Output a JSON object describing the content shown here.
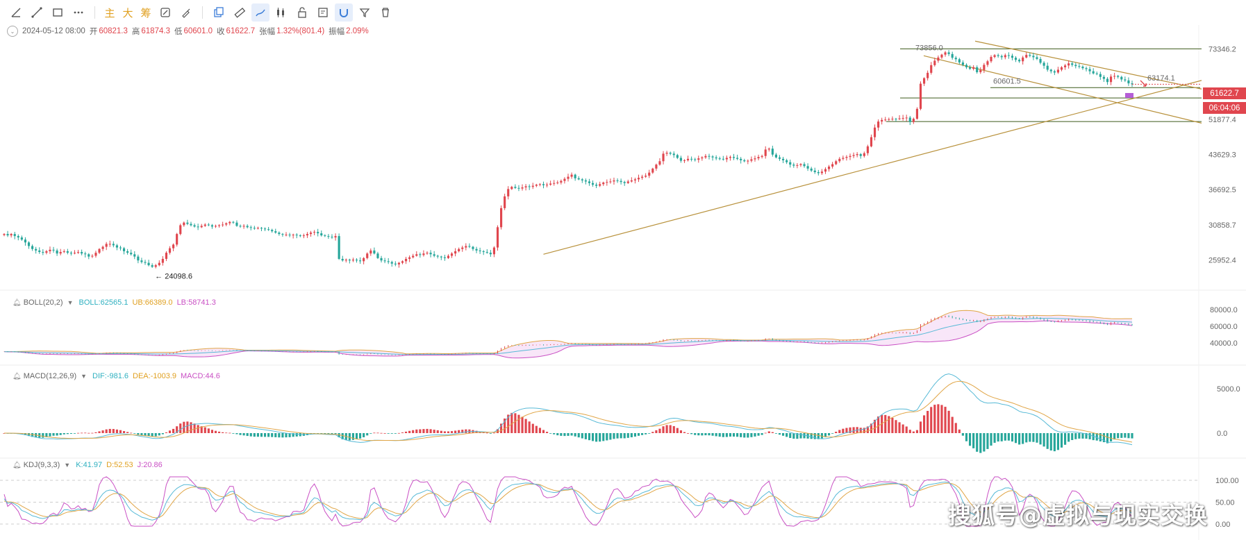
{
  "toolbar": {
    "tools_left": [
      "ray-line-icon",
      "trend-line-icon",
      "rectangle-icon",
      "more-dots-icon"
    ],
    "text_tools": [
      "主",
      "大",
      "筹"
    ],
    "tools_right": [
      "calc-tool-icon",
      "brush-tool-icon",
      "copy-icon",
      "ruler-icon",
      "draw-pen-icon",
      "candle-bars-icon",
      "lock-icon",
      "note-edit-icon",
      "magnet-icon",
      "filter-icon",
      "trash-icon"
    ]
  },
  "ohlc": {
    "date": "2024-05-12 08:00",
    "open_label": "开",
    "open": "60821.3",
    "high_label": "高",
    "high": "61874.3",
    "low_label": "低",
    "low": "60601.0",
    "close_label": "收",
    "close": "61622.7",
    "change_label": "张幅",
    "change": "1.32%(801.4)",
    "amp_label": "振幅",
    "amp": "2.09%"
  },
  "boll": {
    "name": "BOLL(20,2)",
    "boll": "BOLL:62565.1",
    "ub": "UB:66389.0",
    "lb": "LB:58741.3"
  },
  "macd": {
    "name": "MACD(12,26,9)",
    "dif": "DIF:-981.6",
    "dea": "DEA:-1003.9",
    "macd": "MACD:44.6"
  },
  "kdj": {
    "name": "KDJ(9,3,3)",
    "k": "K:41.97",
    "d": "D:52.53",
    "j": "J:20.86"
  },
  "price_axis": [
    "73346.2",
    "51877.4",
    "43629.3",
    "36692.5",
    "30858.7",
    "25952.4"
  ],
  "boll_axis": [
    "80000.0",
    "60000.0",
    "40000.0"
  ],
  "macd_axis": [
    "5000.0",
    "0.0"
  ],
  "kdj_axis": [
    "100.00",
    "50.00",
    "0.00"
  ],
  "annotations": {
    "low": "24098.6",
    "high": "73856.0",
    "level": "60601.5",
    "target": "63174.1"
  },
  "current_price": "61622.7",
  "countdown": "06:04:06",
  "watermark": "搜狐号@虚拟与现实交换",
  "colors": {
    "up": "#e0464e",
    "down": "#26a69a",
    "boll_mid": "#56b9d6",
    "boll_ub": "#e0a546",
    "boll_lb": "#c94fc4",
    "trend": "#b8913b",
    "level": "#6d8f2a",
    "dif": "#56b9d6",
    "dea": "#e0a546",
    "k": "#56b9d6",
    "d": "#e0a546",
    "j": "#c94fc4"
  },
  "chart_data": {
    "type": "candlestick",
    "title": "",
    "ylim": [
      23000,
      76000
    ],
    "log_scale": true,
    "closes": [
      29500,
      29300,
      29500,
      29200,
      29000,
      28700,
      28300,
      27800,
      27400,
      27200,
      27000,
      26900,
      27100,
      27300,
      27200,
      26800,
      27000,
      27100,
      26900,
      26800,
      26900,
      27000,
      26800,
      26700,
      26400,
      26500,
      26900,
      27400,
      27700,
      28100,
      28100,
      27900,
      27600,
      27500,
      27100,
      26900,
      26700,
      26400,
      25900,
      25700,
      25600,
      25300,
      25100,
      25300,
      25600,
      26100,
      26900,
      27500,
      28000,
      29500,
      30800,
      31200,
      31000,
      30800,
      30600,
      30500,
      30700,
      30900,
      30800,
      30600,
      30700,
      30800,
      30900,
      31100,
      31300,
      31200,
      30700,
      30600,
      30700,
      30500,
      30400,
      30300,
      30400,
      30300,
      30200,
      30100,
      29900,
      29700,
      29500,
      29400,
      29400,
      29300,
      29400,
      29300,
      29200,
      29300,
      29500,
      29700,
      29800,
      29600,
      29300,
      29200,
      29100,
      29000,
      29200,
      26100,
      25900,
      26000,
      25900,
      26000,
      25900,
      25800,
      26200,
      26800,
      27200,
      26800,
      26200,
      25900,
      25800,
      25700,
      25500,
      25400,
      25600,
      25800,
      26100,
      26300,
      26500,
      26700,
      26600,
      26800,
      26900,
      26700,
      26500,
      26400,
      26300,
      26200,
      26500,
      26800,
      27100,
      27400,
      27600,
      27800,
      27700,
      27400,
      27200,
      27100,
      27000,
      26900,
      26700,
      27600,
      30500,
      33500,
      35500,
      36800,
      37200,
      37000,
      36900,
      37100,
      37300,
      37200,
      37400,
      37600,
      37700,
      37500,
      37600,
      37800,
      37900,
      38000,
      38300,
      38700,
      39100,
      39500,
      38800,
      38600,
      38400,
      38200,
      37900,
      37600,
      37400,
      37700,
      38000,
      38100,
      38200,
      38400,
      38300,
      38100,
      37900,
      38200,
      38400,
      38600,
      38900,
      39100,
      39300,
      39900,
      40700,
      41500,
      42200,
      43800,
      44000,
      43800,
      43500,
      42900,
      42300,
      42400,
      42700,
      42600,
      42500,
      42800,
      43000,
      43300,
      43200,
      43000,
      42800,
      42700,
      42600,
      42900,
      43100,
      42900,
      42700,
      42400,
      42200,
      42300,
      42600,
      42800,
      43100,
      43300,
      44700,
      44900,
      43600,
      43000,
      42700,
      42400,
      42000,
      41500,
      41300,
      41400,
      41600,
      41200,
      40700,
      40300,
      40000,
      39800,
      40100,
      40600,
      41100,
      41600,
      42200,
      42700,
      42900,
      43100,
      43300,
      43500,
      43700,
      43300,
      43900,
      45400,
      47500,
      49800,
      51300,
      51700,
      51800,
      51900,
      52000,
      51900,
      52100,
      52200,
      52300,
      51200,
      52000,
      54600,
      61800,
      63500,
      65200,
      67700,
      69200,
      70300,
      71300,
      72100,
      71500,
      70200,
      69700,
      68600,
      67800,
      67000,
      66500,
      67000,
      65400,
      66100,
      67800,
      69000,
      70500,
      71100,
      70800,
      70400,
      71100,
      70900,
      70200,
      69500,
      69000,
      70300,
      71200,
      70900,
      70400,
      69800,
      68500,
      67500,
      66200,
      65700,
      65300,
      66200,
      67000,
      67600,
      68300,
      67800,
      67400,
      67200,
      66700,
      66400,
      65700,
      65000,
      64800,
      63900,
      63300,
      62300,
      64000,
      64200,
      63900,
      63100,
      62800,
      61900,
      61622.7
    ],
    "annotations": {
      "low": 24098.6,
      "high": 73856.0,
      "level": 60601.5,
      "target": 63174.1
    },
    "horizontal_levels": [
      73346.2,
      60601.5,
      57600,
      51300
    ],
    "kdj_range": [
      0,
      100
    ],
    "macd_ticks": [
      0,
      5000
    ]
  }
}
